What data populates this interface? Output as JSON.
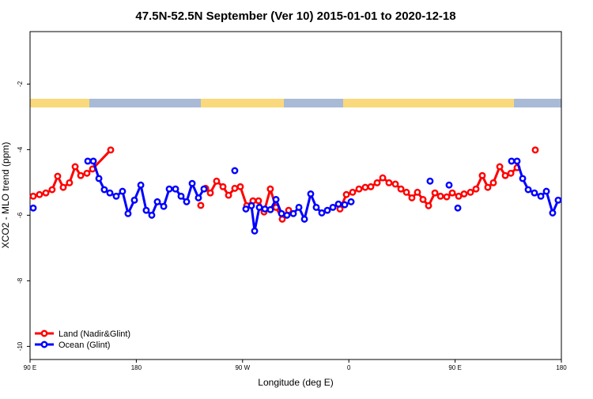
{
  "chart_data": {
    "type": "line",
    "title": "47.5N-52.5N September (Ver 10)   2015-01-01 to 2020-12-18",
    "x_label": "Longitude (deg E)",
    "y_label": "XCO2 - MLO trend (ppm)",
    "xlim": [
      90,
      540
    ],
    "ylim": [
      -10.4,
      -0.4
    ],
    "xticks": [
      {
        "value": 90,
        "label": "90 E"
      },
      {
        "value": 180,
        "label": "180"
      },
      {
        "value": 270,
        "label": "90 W"
      },
      {
        "value": 360,
        "label": "0"
      },
      {
        "value": 450,
        "label": "90 E"
      },
      {
        "value": 540,
        "label": "180"
      }
    ],
    "yticks": [
      -2,
      -4,
      -6,
      -8,
      -10
    ],
    "legend": "bottom-left",
    "series": [
      {
        "name": "Land (Nadir&Glint)",
        "color": "#ff0000",
        "x": [
          92.7,
          98.0,
          103.4,
          108.7,
          113.4,
          118.1,
          123.4,
          128.2,
          132.9,
          138.2,
          142.9,
          158.3,
          null,
          234.6,
          null,
          238.7,
          242.7,
          248.0,
          253.4,
          258.1,
          263.4,
          268.1,
          273.5,
          278.8,
          283.5,
          288.2,
          293.5,
          298.3,
          303.6,
          309.0,
          null,
          352.5,
          357.9,
          363.2,
          368.6,
          373.9,
          378.6,
          384.0,
          388.7,
          394.0,
          399.4,
          404.1,
          408.8,
          413.4,
          418.1,
          422.8,
          427.5,
          432.9,
          437.6,
          442.9,
          447.6,
          453.0,
          457.6,
          463.0,
          467.7,
          473.0,
          477.7,
          482.4,
          487.8,
          492.5,
          497.2,
          502.5,
          null,
          517.9
        ],
        "values": [
          -5.42,
          -5.37,
          -5.32,
          -5.22,
          -4.81,
          -5.15,
          -5.01,
          -4.52,
          -4.79,
          -4.72,
          -4.59,
          -4.01,
          null,
          -5.7,
          null,
          -5.18,
          -5.32,
          -4.96,
          -5.13,
          -5.39,
          -5.18,
          -5.13,
          -5.71,
          -5.56,
          -5.56,
          -5.9,
          -5.2,
          -5.76,
          -6.12,
          -5.85,
          null,
          -5.81,
          -5.37,
          -5.3,
          -5.2,
          -5.15,
          -5.13,
          -5.01,
          -4.86,
          -5.01,
          -5.05,
          -5.2,
          -5.3,
          -5.47,
          -5.3,
          -5.52,
          -5.71,
          -5.32,
          -5.42,
          -5.44,
          -5.32,
          -5.42,
          -5.35,
          -5.3,
          -5.2,
          -4.79,
          -5.15,
          -5.01,
          -4.52,
          -4.79,
          -4.72,
          -4.55,
          null,
          -4.01
        ]
      },
      {
        "name": "Ocean (Glint)",
        "color": "#0000ff",
        "x": [
          92.7,
          null,
          138.9,
          143.6,
          148.3,
          152.9,
          157.6,
          163.0,
          168.3,
          173.0,
          178.4,
          183.8,
          188.4,
          193.1,
          197.8,
          203.2,
          207.9,
          213.2,
          217.9,
          222.6,
          227.3,
          232.6,
          237.3,
          null,
          263.4,
          null,
          272.8,
          277.5,
          280.2,
          284.2,
          288.9,
          293.6,
          298.3,
          303.0,
          307.6,
          313.0,
          317.7,
          322.4,
          327.7,
          332.4,
          337.1,
          341.8,
          346.5,
          351.2,
          356.5,
          361.9,
          null,
          428.8,
          null,
          444.9,
          null,
          452.3,
          null,
          497.8,
          502.5,
          507.2,
          511.9,
          517.2,
          522.6,
          527.3,
          532.6,
          537.3
        ],
        "values": [
          -5.78,
          null,
          -4.35,
          -4.35,
          -4.88,
          -5.22,
          -5.32,
          -5.42,
          -5.27,
          -5.95,
          -5.54,
          -5.08,
          -5.85,
          -6.0,
          -5.59,
          -5.73,
          -5.2,
          -5.2,
          -5.42,
          -5.59,
          -5.03,
          -5.47,
          -5.2,
          null,
          -4.64,
          null,
          -5.81,
          -5.71,
          -6.48,
          -5.76,
          -5.81,
          -5.83,
          -5.52,
          -5.95,
          -6.0,
          -5.95,
          -5.76,
          -6.12,
          -5.35,
          -5.76,
          -5.93,
          -5.85,
          -5.76,
          -5.66,
          -5.68,
          -5.59,
          null,
          -4.96,
          null,
          -5.08,
          null,
          -5.78,
          null,
          -4.35,
          -4.35,
          -4.88,
          -5.22,
          -5.32,
          -5.42,
          -5.27,
          -5.93,
          -5.54
        ]
      }
    ]
  }
}
